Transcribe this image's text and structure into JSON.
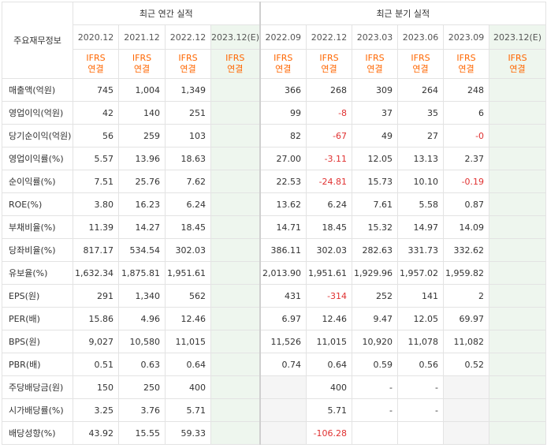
{
  "header": {
    "row_label": "주요재무정보",
    "annual_title": "최근 연간 실적",
    "quarterly_title": "최근 분기 실적",
    "annual_periods": [
      "2020.12",
      "2021.12",
      "2022.12",
      "2023.12(E)"
    ],
    "quarterly_periods": [
      "2022.09",
      "2022.12",
      "2023.03",
      "2023.06",
      "2023.09",
      "2023.12(E)"
    ],
    "ifrs_top": "IFRS",
    "ifrs_bottom": "연결"
  },
  "rows": [
    {
      "label": "매출액(억원)",
      "annual": [
        "745",
        "1,004",
        "1,349",
        ""
      ],
      "quarterly": [
        "366",
        "268",
        "309",
        "264",
        "248",
        ""
      ]
    },
    {
      "label": "영업이익(억원)",
      "annual": [
        "42",
        "140",
        "251",
        ""
      ],
      "quarterly": [
        "99",
        "-8",
        "37",
        "35",
        "6",
        ""
      ]
    },
    {
      "label": "당기순이익(억원)",
      "annual": [
        "56",
        "259",
        "103",
        ""
      ],
      "quarterly": [
        "82",
        "-67",
        "49",
        "27",
        "-0",
        ""
      ]
    },
    {
      "label": "영업이익률(%)",
      "annual": [
        "5.57",
        "13.96",
        "18.63",
        ""
      ],
      "quarterly": [
        "27.00",
        "-3.11",
        "12.05",
        "13.13",
        "2.37",
        ""
      ]
    },
    {
      "label": "순이익률(%)",
      "annual": [
        "7.51",
        "25.76",
        "7.62",
        ""
      ],
      "quarterly": [
        "22.53",
        "-24.81",
        "15.73",
        "10.10",
        "-0.19",
        ""
      ]
    },
    {
      "label": "ROE(%)",
      "annual": [
        "3.80",
        "16.23",
        "6.24",
        ""
      ],
      "quarterly": [
        "13.62",
        "6.24",
        "7.61",
        "5.58",
        "0.87",
        ""
      ]
    },
    {
      "label": "부채비율(%)",
      "annual": [
        "11.39",
        "14.27",
        "18.45",
        ""
      ],
      "quarterly": [
        "14.71",
        "18.45",
        "15.32",
        "14.97",
        "14.09",
        ""
      ]
    },
    {
      "label": "당좌비율(%)",
      "annual": [
        "817.17",
        "534.54",
        "302.03",
        ""
      ],
      "quarterly": [
        "386.11",
        "302.03",
        "282.63",
        "331.73",
        "332.62",
        ""
      ]
    },
    {
      "label": "유보율(%)",
      "annual": [
        "1,632.34",
        "1,875.81",
        "1,951.61",
        ""
      ],
      "quarterly": [
        "2,013.90",
        "1,951.61",
        "1,929.96",
        "1,957.02",
        "1,959.82",
        ""
      ]
    },
    {
      "label": "EPS(원)",
      "annual": [
        "291",
        "1,340",
        "562",
        ""
      ],
      "quarterly": [
        "431",
        "-314",
        "252",
        "141",
        "2",
        ""
      ]
    },
    {
      "label": "PER(배)",
      "annual": [
        "15.86",
        "4.96",
        "12.46",
        ""
      ],
      "quarterly": [
        "6.97",
        "12.46",
        "9.47",
        "12.05",
        "69.97",
        ""
      ]
    },
    {
      "label": "BPS(원)",
      "annual": [
        "9,027",
        "10,580",
        "11,015",
        ""
      ],
      "quarterly": [
        "11,526",
        "11,015",
        "10,920",
        "11,078",
        "11,082",
        ""
      ]
    },
    {
      "label": "PBR(배)",
      "annual": [
        "0.51",
        "0.63",
        "0.64",
        ""
      ],
      "quarterly": [
        "0.74",
        "0.64",
        "0.59",
        "0.56",
        "0.52",
        ""
      ]
    },
    {
      "label": "주당배당금(원)",
      "annual": [
        "150",
        "250",
        "400",
        ""
      ],
      "quarterly": [
        "",
        "400",
        "-",
        "-",
        "",
        ""
      ]
    },
    {
      "label": "시가배당률(%)",
      "annual": [
        "3.25",
        "3.76",
        "5.71",
        ""
      ],
      "quarterly": [
        "",
        "5.71",
        "-",
        "-",
        "",
        ""
      ]
    },
    {
      "label": "배당성향(%)",
      "annual": [
        "43.92",
        "15.55",
        "59.33",
        ""
      ],
      "quarterly": [
        "",
        "-106.28",
        "",
        "",
        "",
        ""
      ]
    }
  ]
}
